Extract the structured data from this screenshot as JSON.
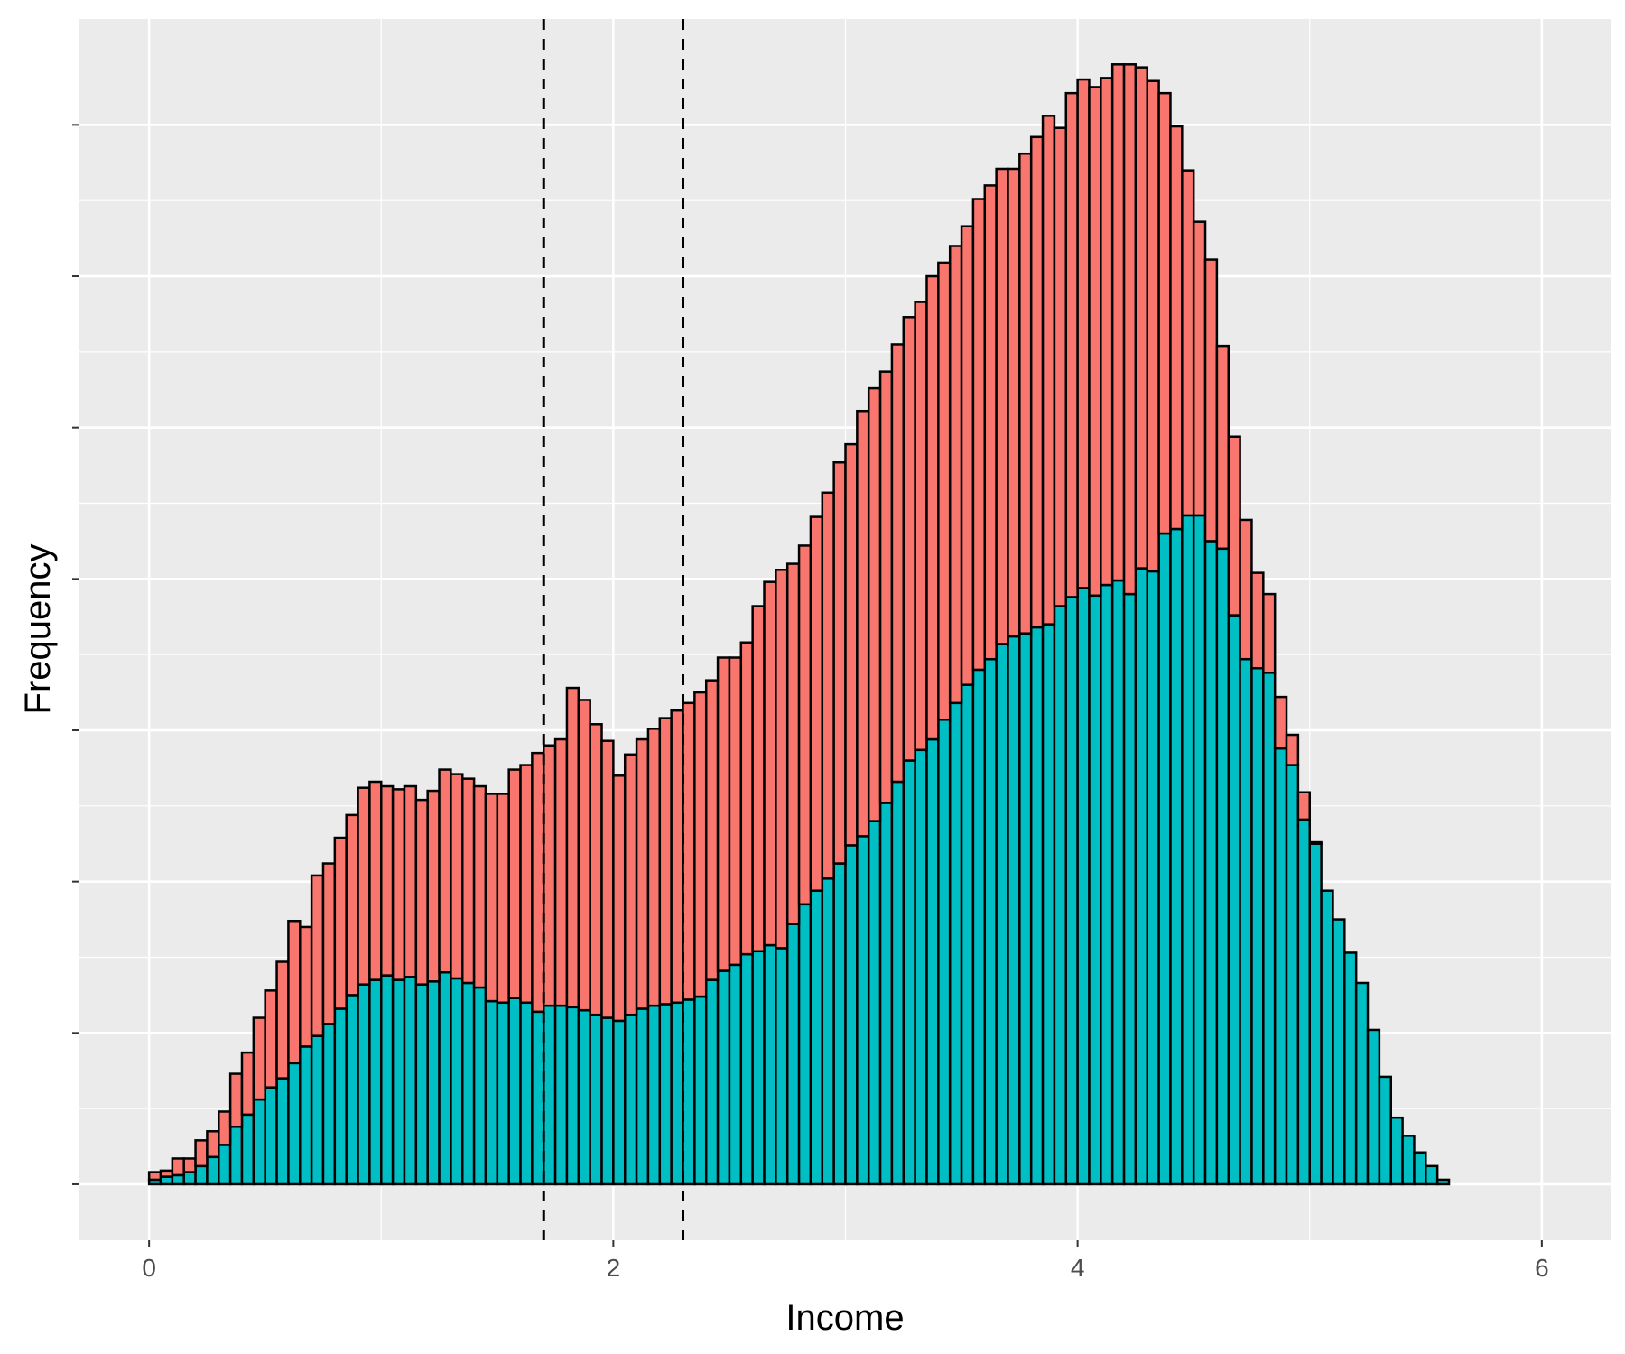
{
  "chart_data": {
    "type": "bar",
    "xlabel": "Income",
    "ylabel": "Frequency",
    "xlim": [
      -0.3,
      6.3
    ],
    "ylim": [
      -0.37,
      7.7
    ],
    "x_ticks": [
      0,
      2,
      4,
      6
    ],
    "x_tick_labels": [
      "0",
      "2",
      "4",
      "6"
    ],
    "y_ticks": [
      0,
      1,
      2,
      3,
      4,
      5,
      6,
      7
    ],
    "y_tick_labels_shown": false,
    "grid": true,
    "legend": "none",
    "stacked": true,
    "bin_width": 0.05,
    "bin_start": 0.025,
    "vertical_lines": [
      1.7,
      2.3
    ],
    "vertical_line_style": "dashed",
    "series": [
      {
        "color": "#00BFC4",
        "values": [
          0.03,
          0.05,
          0.06,
          0.08,
          0.12,
          0.18,
          0.26,
          0.38,
          0.46,
          0.56,
          0.64,
          0.7,
          0.8,
          0.91,
          0.98,
          1.06,
          1.16,
          1.25,
          1.32,
          1.35,
          1.38,
          1.35,
          1.37,
          1.32,
          1.34,
          1.4,
          1.36,
          1.33,
          1.3,
          1.21,
          1.2,
          1.23,
          1.2,
          1.14,
          1.18,
          1.18,
          1.17,
          1.15,
          1.12,
          1.1,
          1.08,
          1.12,
          1.16,
          1.18,
          1.19,
          1.2,
          1.22,
          1.24,
          1.35,
          1.41,
          1.45,
          1.52,
          1.54,
          1.58,
          1.56,
          1.72,
          1.85,
          1.94,
          2.02,
          2.12,
          2.24,
          2.3,
          2.4,
          2.52,
          2.66,
          2.8,
          2.87,
          2.94,
          3.07,
          3.18,
          3.3,
          3.4,
          3.47,
          3.57,
          3.62,
          3.64,
          3.68,
          3.7,
          3.82,
          3.88,
          3.94,
          3.89,
          3.96,
          3.99,
          3.9,
          4.07,
          4.05,
          4.3,
          4.33,
          4.42,
          4.42,
          4.25,
          4.2,
          3.76,
          3.47,
          3.41,
          3.38,
          2.88,
          2.77,
          2.41,
          2.25,
          1.94,
          1.75,
          1.53,
          1.33,
          1.02,
          0.71,
          0.44,
          0.32,
          0.21,
          0.12,
          0.03
        ]
      },
      {
        "color": "#F8766D",
        "values": [
          0.05,
          0.04,
          0.11,
          0.09,
          0.17,
          0.17,
          0.22,
          0.35,
          0.41,
          0.54,
          0.64,
          0.77,
          0.94,
          0.79,
          1.06,
          1.06,
          1.13,
          1.19,
          1.3,
          1.31,
          1.25,
          1.26,
          1.26,
          1.22,
          1.26,
          1.34,
          1.35,
          1.35,
          1.33,
          1.37,
          1.38,
          1.51,
          1.57,
          1.71,
          1.72,
          1.76,
          2.11,
          2.05,
          1.92,
          1.83,
          1.62,
          1.72,
          1.78,
          1.83,
          1.89,
          1.93,
          1.96,
          2.01,
          1.98,
          2.07,
          2.03,
          2.06,
          2.28,
          2.4,
          2.5,
          2.38,
          2.37,
          2.47,
          2.55,
          2.65,
          2.65,
          2.81,
          2.86,
          2.85,
          2.89,
          2.93,
          2.96,
          3.06,
          3.02,
          3.02,
          3.03,
          3.11,
          3.13,
          3.14,
          3.09,
          3.17,
          3.24,
          3.36,
          3.16,
          3.33,
          3.36,
          3.36,
          3.35,
          3.41,
          3.5,
          3.31,
          3.24,
          2.91,
          2.66,
          2.28,
          1.94,
          1.86,
          1.34,
          1.18,
          0.92,
          0.63,
          0.52,
          0.34,
          0.2,
          0.18,
          0.01,
          0,
          0,
          0,
          0,
          0,
          0,
          0,
          0,
          0,
          0,
          0
        ]
      }
    ]
  }
}
